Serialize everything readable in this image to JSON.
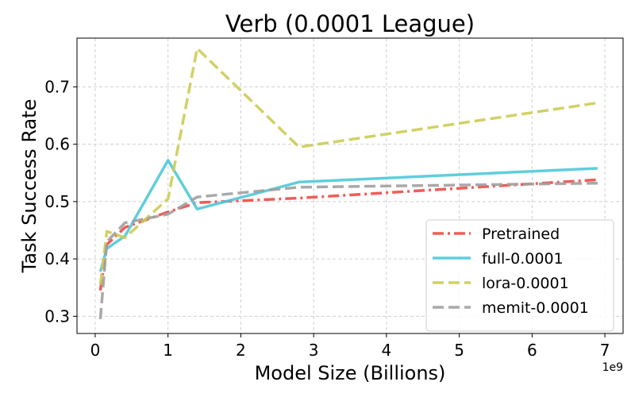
{
  "chart_data": {
    "type": "line",
    "title": "Verb (0.0001 League)",
    "xlabel": "Model Size (Billions)",
    "ylabel": "Task Success Rate",
    "x_offset_label": "1e9",
    "xlim": [
      -0.25,
      7.25
    ],
    "ylim": [
      0.27,
      0.785
    ],
    "xticks": [
      0,
      1,
      2,
      3,
      4,
      5,
      6,
      7
    ],
    "yticks": [
      0.3,
      0.4,
      0.5,
      0.6,
      0.7
    ],
    "ytick_labels": [
      "0.3",
      "0.4",
      "0.5",
      "0.6",
      "0.7"
    ],
    "grid": true,
    "legend_position": "lower-right",
    "series": [
      {
        "name": "Pretrained",
        "color": "#f04a45",
        "style": "dashdot",
        "x": [
          0.07,
          0.16,
          0.41,
          1.0,
          1.4,
          2.8,
          6.9
        ],
        "y": [
          0.345,
          0.425,
          0.455,
          0.482,
          0.498,
          0.506,
          0.538
        ]
      },
      {
        "name": "full-0.0001",
        "color": "#4ec9d9",
        "style": "solid",
        "x": [
          0.07,
          0.16,
          0.41,
          1.0,
          1.4,
          2.8,
          6.9
        ],
        "y": [
          0.378,
          0.418,
          0.44,
          0.572,
          0.487,
          0.534,
          0.558
        ]
      },
      {
        "name": "lora-0.0001",
        "color": "#cccc55",
        "style": "dashed",
        "x": [
          0.07,
          0.16,
          0.41,
          1.0,
          1.4,
          2.8,
          6.9
        ],
        "y": [
          0.355,
          0.448,
          0.437,
          0.505,
          0.767,
          0.595,
          0.672
        ]
      },
      {
        "name": "memit-0.0001",
        "color": "#a0a0a0",
        "style": "dashed",
        "x": [
          0.07,
          0.16,
          0.41,
          1.0,
          1.4,
          2.8,
          6.9
        ],
        "y": [
          0.295,
          0.43,
          0.463,
          0.478,
          0.508,
          0.525,
          0.532
        ]
      }
    ]
  }
}
